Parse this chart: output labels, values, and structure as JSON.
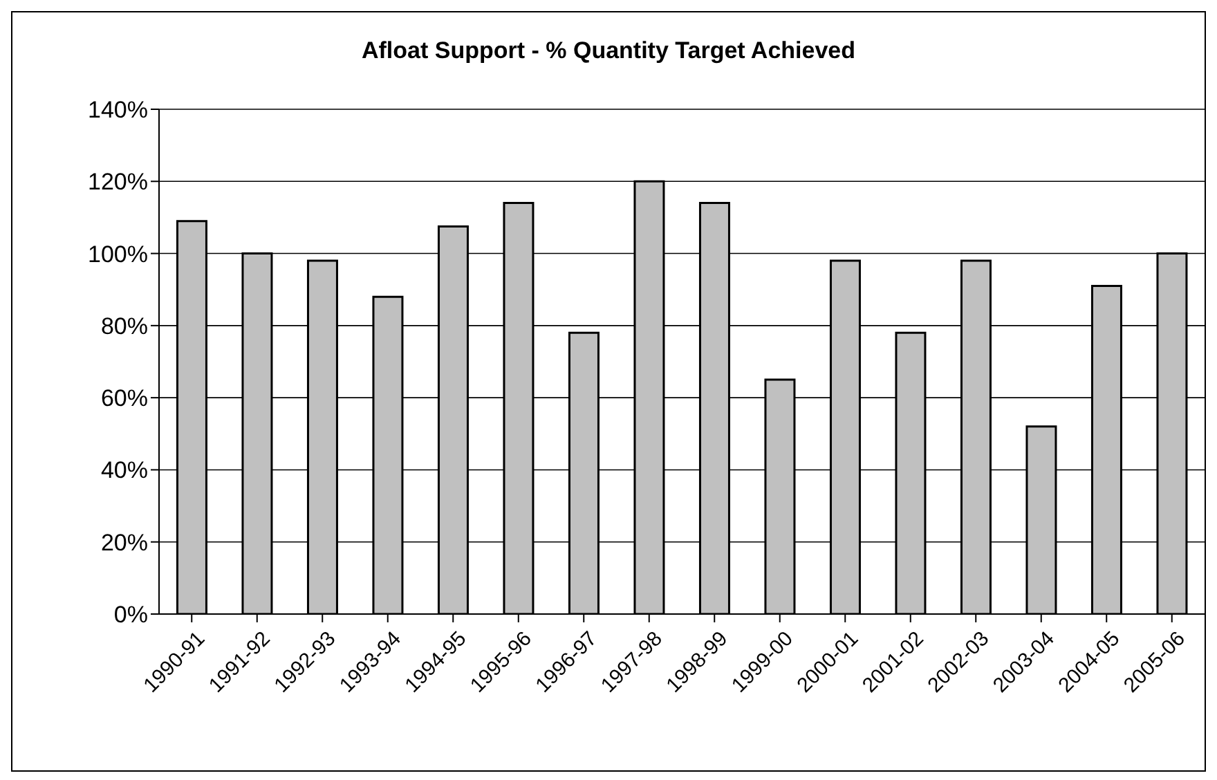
{
  "chart_data": {
    "type": "bar",
    "title": "Afloat Support - % Quantity Target Achieved",
    "categories": [
      "1990-91",
      "1991-92",
      "1992-93",
      "1993-94",
      "1994-95",
      "1995-96",
      "1996-97",
      "1997-98",
      "1998-99",
      "1999-00",
      "2000-01",
      "2001-02",
      "2002-03",
      "2003-04",
      "2004-05",
      "2005-06"
    ],
    "values": [
      109,
      100,
      98,
      88,
      107.5,
      114,
      78,
      120,
      114,
      65,
      98,
      78,
      98,
      52,
      91,
      100
    ],
    "color": "#c0c0c0",
    "ylim": [
      0,
      140
    ],
    "yticks": [
      {
        "value": 0,
        "label": "0%"
      },
      {
        "value": 20,
        "label": "20%"
      },
      {
        "value": 40,
        "label": "40%"
      },
      {
        "value": 60,
        "label": "60%"
      },
      {
        "value": 80,
        "label": "80%"
      },
      {
        "value": 100,
        "label": "100%"
      },
      {
        "value": 120,
        "label": "120%"
      },
      {
        "value": 140,
        "label": "140%"
      }
    ],
    "grid": "y",
    "legend": false
  }
}
